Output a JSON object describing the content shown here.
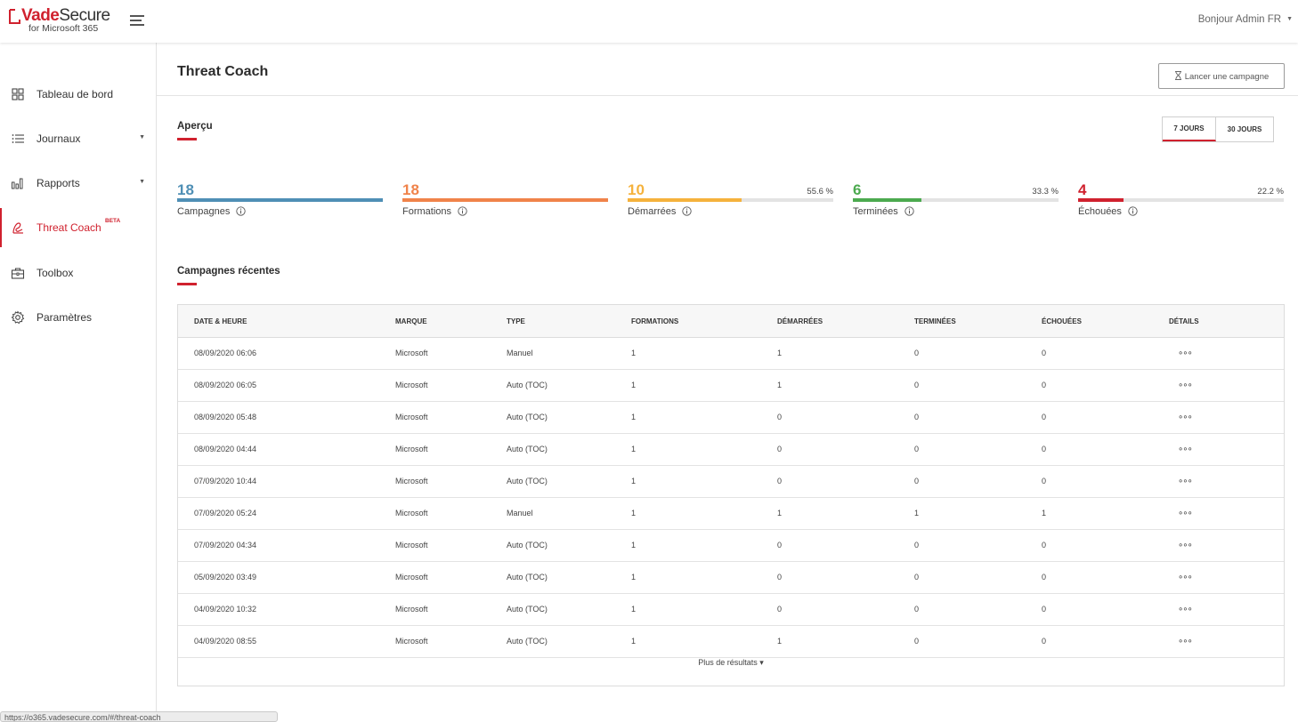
{
  "header": {
    "logo_name_accent": "Vade",
    "logo_name_rest": "Secure",
    "logo_sub": "for Microsoft 365",
    "greeting": "Bonjour Admin FR"
  },
  "sidebar": {
    "items": [
      {
        "label": "Tableau de bord",
        "icon": "dashboard-icon"
      },
      {
        "label": "Journaux",
        "icon": "list-icon"
      },
      {
        "label": "Rapports",
        "icon": "bar-chart-icon"
      },
      {
        "label": "Threat Coach",
        "icon": "threat-coach-icon",
        "badge": "BETA"
      },
      {
        "label": "Toolbox",
        "icon": "toolbox-icon"
      },
      {
        "label": "Paramètres",
        "icon": "gear-icon"
      }
    ]
  },
  "page": {
    "title": "Threat Coach",
    "launch_button": "Lancer une campagne"
  },
  "overview": {
    "title": "Aperçu",
    "range_7": "7 JOURS",
    "range_30": "30 JOURS",
    "stats": [
      {
        "value": "18",
        "label": "Campagnes",
        "pct": "",
        "fill_fraction": 1.0,
        "color": "#4f8fb5"
      },
      {
        "value": "18",
        "label": "Formations",
        "pct": "",
        "fill_fraction": 1.0,
        "color": "#f0834a"
      },
      {
        "value": "10",
        "label": "Démarrées",
        "pct": "55.6 %",
        "fill_fraction": 0.556,
        "color": "#f5b23c"
      },
      {
        "value": "6",
        "label": "Terminées",
        "pct": "33.3 %",
        "fill_fraction": 0.333,
        "color": "#4caa4f"
      },
      {
        "value": "4",
        "label": "Échouées",
        "pct": "22.2 %",
        "fill_fraction": 0.222,
        "color": "#d0212e"
      }
    ]
  },
  "recent": {
    "title": "Campagnes récentes",
    "columns": [
      "DATE & HEURE",
      "MARQUE",
      "TYPE",
      "FORMATIONS",
      "DÉMARRÉES",
      "TERMINÉES",
      "ÉCHOUÉES",
      "DÉTAILS"
    ],
    "rows": [
      [
        "08/09/2020 06:06",
        "Microsoft",
        "Manuel",
        "1",
        "1",
        "0",
        "0"
      ],
      [
        "08/09/2020 06:05",
        "Microsoft",
        "Auto (TOC)",
        "1",
        "1",
        "0",
        "0"
      ],
      [
        "08/09/2020 05:48",
        "Microsoft",
        "Auto (TOC)",
        "1",
        "0",
        "0",
        "0"
      ],
      [
        "08/09/2020 04:44",
        "Microsoft",
        "Auto (TOC)",
        "1",
        "0",
        "0",
        "0"
      ],
      [
        "07/09/2020 10:44",
        "Microsoft",
        "Auto (TOC)",
        "1",
        "0",
        "0",
        "0"
      ],
      [
        "07/09/2020 05:24",
        "Microsoft",
        "Manuel",
        "1",
        "1",
        "1",
        "1"
      ],
      [
        "07/09/2020 04:34",
        "Microsoft",
        "Auto (TOC)",
        "1",
        "0",
        "0",
        "0"
      ],
      [
        "05/09/2020 03:49",
        "Microsoft",
        "Auto (TOC)",
        "1",
        "0",
        "0",
        "0"
      ],
      [
        "04/09/2020 10:32",
        "Microsoft",
        "Auto (TOC)",
        "1",
        "0",
        "0",
        "0"
      ],
      [
        "04/09/2020 08:55",
        "Microsoft",
        "Auto (TOC)",
        "1",
        "1",
        "0",
        "0"
      ]
    ],
    "details_glyph": "∘∘∘",
    "more_label": "Plus de résultats ▾"
  },
  "statusbar": {
    "url": "https://o365.vadesecure.com/#/threat-coach"
  }
}
